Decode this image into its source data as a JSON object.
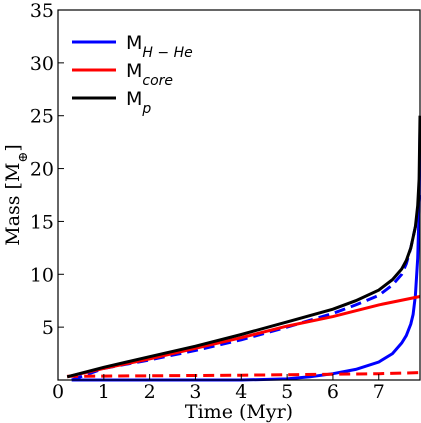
{
  "chart_data": {
    "type": "line",
    "xlabel": "Time (Myr)",
    "ylabel": "Mass [M",
    "ylabel_symbol": "⊕",
    "ylabel_close": "]",
    "xlim": [
      0,
      7.9
    ],
    "ylim": [
      0,
      35
    ],
    "x_ticks": [
      0,
      1,
      2,
      3,
      4,
      5,
      6,
      7
    ],
    "y_ticks": [
      5,
      10,
      15,
      20,
      25,
      30,
      35
    ],
    "grid": false,
    "legend_position": "top-left",
    "series": [
      {
        "name": "M",
        "name_sub": "H − He",
        "color": "#0000ff",
        "style": "solid",
        "points": [
          [
            0.3,
            0.0
          ],
          [
            1,
            0.0
          ],
          [
            2,
            0.0
          ],
          [
            3,
            0.0
          ],
          [
            4,
            0.0
          ],
          [
            5,
            0.1
          ],
          [
            5.5,
            0.3
          ],
          [
            6,
            0.6
          ],
          [
            6.5,
            1.0
          ],
          [
            7,
            1.7
          ],
          [
            7.3,
            2.5
          ],
          [
            7.5,
            3.5
          ],
          [
            7.6,
            4.2
          ],
          [
            7.7,
            5.3
          ],
          [
            7.75,
            6.2
          ],
          [
            7.8,
            8.0
          ],
          [
            7.85,
            11.5
          ],
          [
            7.88,
            16.0
          ],
          [
            7.9,
            23.5
          ]
        ]
      },
      {
        "name": "",
        "color": "#0000ff",
        "style": "dashed",
        "points": [
          [
            0.3,
            0.0
          ],
          [
            1,
            1.1
          ],
          [
            2,
            1.9
          ],
          [
            3,
            2.8
          ],
          [
            4,
            3.8
          ],
          [
            5,
            5.0
          ],
          [
            6,
            6.3
          ],
          [
            6.5,
            7.1
          ],
          [
            7,
            8.0
          ],
          [
            7.3,
            9.0
          ],
          [
            7.5,
            10.0
          ],
          [
            7.6,
            11.0
          ],
          [
            7.7,
            12.5
          ],
          [
            7.8,
            14.5
          ],
          [
            7.85,
            16.0
          ],
          [
            7.9,
            17.5
          ]
        ]
      },
      {
        "name": "M",
        "name_sub": "core",
        "color": "#ff0000",
        "style": "solid",
        "points": [
          [
            0.2,
            0.3
          ],
          [
            1,
            1.1
          ],
          [
            2,
            2.0
          ],
          [
            3,
            3.0
          ],
          [
            4,
            4.0
          ],
          [
            5,
            5.1
          ],
          [
            6,
            6.0
          ],
          [
            7,
            7.1
          ],
          [
            7.9,
            7.9
          ]
        ]
      },
      {
        "name": "",
        "color": "#ff0000",
        "style": "dashed",
        "points": [
          [
            0.2,
            0.35
          ],
          [
            2,
            0.4
          ],
          [
            4,
            0.45
          ],
          [
            6,
            0.55
          ],
          [
            7,
            0.6
          ],
          [
            7.9,
            0.7
          ]
        ]
      },
      {
        "name": "M",
        "name_sub": "p",
        "color": "#000000",
        "style": "solid",
        "points": [
          [
            0.2,
            0.3
          ],
          [
            1,
            1.2
          ],
          [
            2,
            2.2
          ],
          [
            3,
            3.2
          ],
          [
            4,
            4.3
          ],
          [
            5,
            5.5
          ],
          [
            6,
            6.7
          ],
          [
            6.5,
            7.5
          ],
          [
            7,
            8.5
          ],
          [
            7.3,
            9.5
          ],
          [
            7.5,
            10.5
          ],
          [
            7.6,
            11.3
          ],
          [
            7.7,
            12.5
          ],
          [
            7.8,
            14.5
          ],
          [
            7.85,
            16.5
          ],
          [
            7.88,
            19.0
          ],
          [
            7.9,
            25.0
          ]
        ]
      }
    ]
  }
}
